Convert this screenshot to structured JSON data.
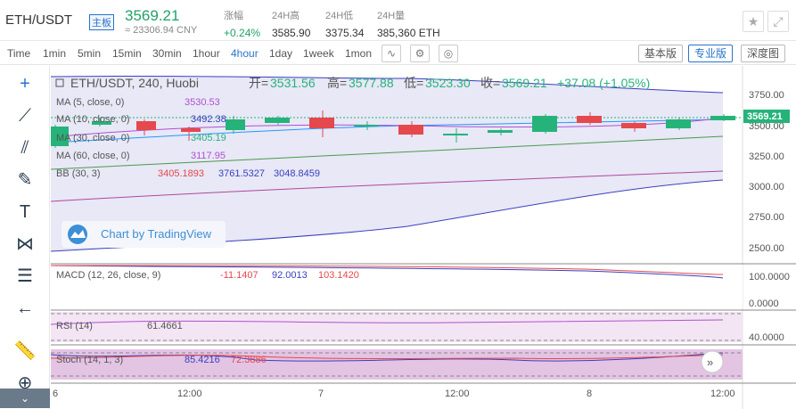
{
  "header": {
    "pair": "ETH/USDT",
    "badge": "主板",
    "price": "3569.21",
    "cny": "≈ 23306.94 CNY",
    "stats": [
      {
        "label": "涨幅",
        "value": "+0.24%"
      },
      {
        "label": "24H高",
        "value": "3585.90"
      },
      {
        "label": "24H低",
        "value": "3375.34"
      },
      {
        "label": "24H量",
        "value": "385,360 ETH"
      }
    ]
  },
  "toolbar": {
    "timeframes": [
      "Time",
      "1min",
      "5min",
      "15min",
      "30min",
      "1hour",
      "4hour",
      "1day",
      "1week",
      "1mon"
    ],
    "active": "4hour",
    "views": [
      "基本版",
      "专业版",
      "深度图"
    ],
    "active_view": "专业版"
  },
  "legend": {
    "title": "ETH/USDT, 240, Huobi",
    "open_label": "开=",
    "open": "3531.56",
    "high_label": "高=",
    "high": "3577.88",
    "low_label": "低=",
    "low": "3523.30",
    "close_label": "收=",
    "close": "3569.21",
    "change": "+37.08 (+1.05%)",
    "ma5": {
      "label": "MA (5, close, 0)",
      "value": "3530.53"
    },
    "ma10": {
      "label": "MA (10, close, 0)",
      "value": "3492.38"
    },
    "ma30": {
      "label": "MA (30, close, 0)",
      "value": "3405.19"
    },
    "ma60": {
      "label": "MA (60, close, 0)",
      "value": "3117.95"
    },
    "bb": {
      "label": "BB (30, 3)",
      "v1": "3405.1893",
      "v2": "3761.5327",
      "v3": "3048.8459"
    },
    "watermark": "Chart by TradingView"
  },
  "indicators": {
    "macd": {
      "label": "MACD (12, 26, close, 9)",
      "v1": "-11.1407",
      "v2": "92.0013",
      "v3": "103.1420"
    },
    "rsi": {
      "label": "RSI (14)",
      "v1": "61.4661"
    },
    "stoch": {
      "label": "Stoch (14, 1, 3)",
      "v1": "85.4216",
      "v2": "72.3886"
    }
  },
  "axis": {
    "price_ticks": [
      "3750.00",
      "3500.00",
      "3250.00",
      "3000.00",
      "2750.00",
      "2500.00"
    ],
    "price_tag": "3569.21",
    "macd_ticks": [
      "100.0000",
      "0.0000"
    ],
    "rsi_ticks": [
      "40.0000"
    ],
    "time_ticks": [
      "6",
      "12:00",
      "7",
      "12:00",
      "8",
      "12:00"
    ]
  },
  "colors": {
    "up": "#26b37a",
    "down": "#e5484d",
    "accent": "#2a74c9"
  },
  "icons": [
    "favorite-star-icon",
    "fullscreen-icon",
    "crosshair-icon",
    "trendline-icon",
    "pitchfork-icon",
    "brush-icon",
    "text-icon",
    "pattern-icon",
    "fib-icon",
    "back-arrow-icon",
    "ruler-icon",
    "zoom-icon"
  ]
}
